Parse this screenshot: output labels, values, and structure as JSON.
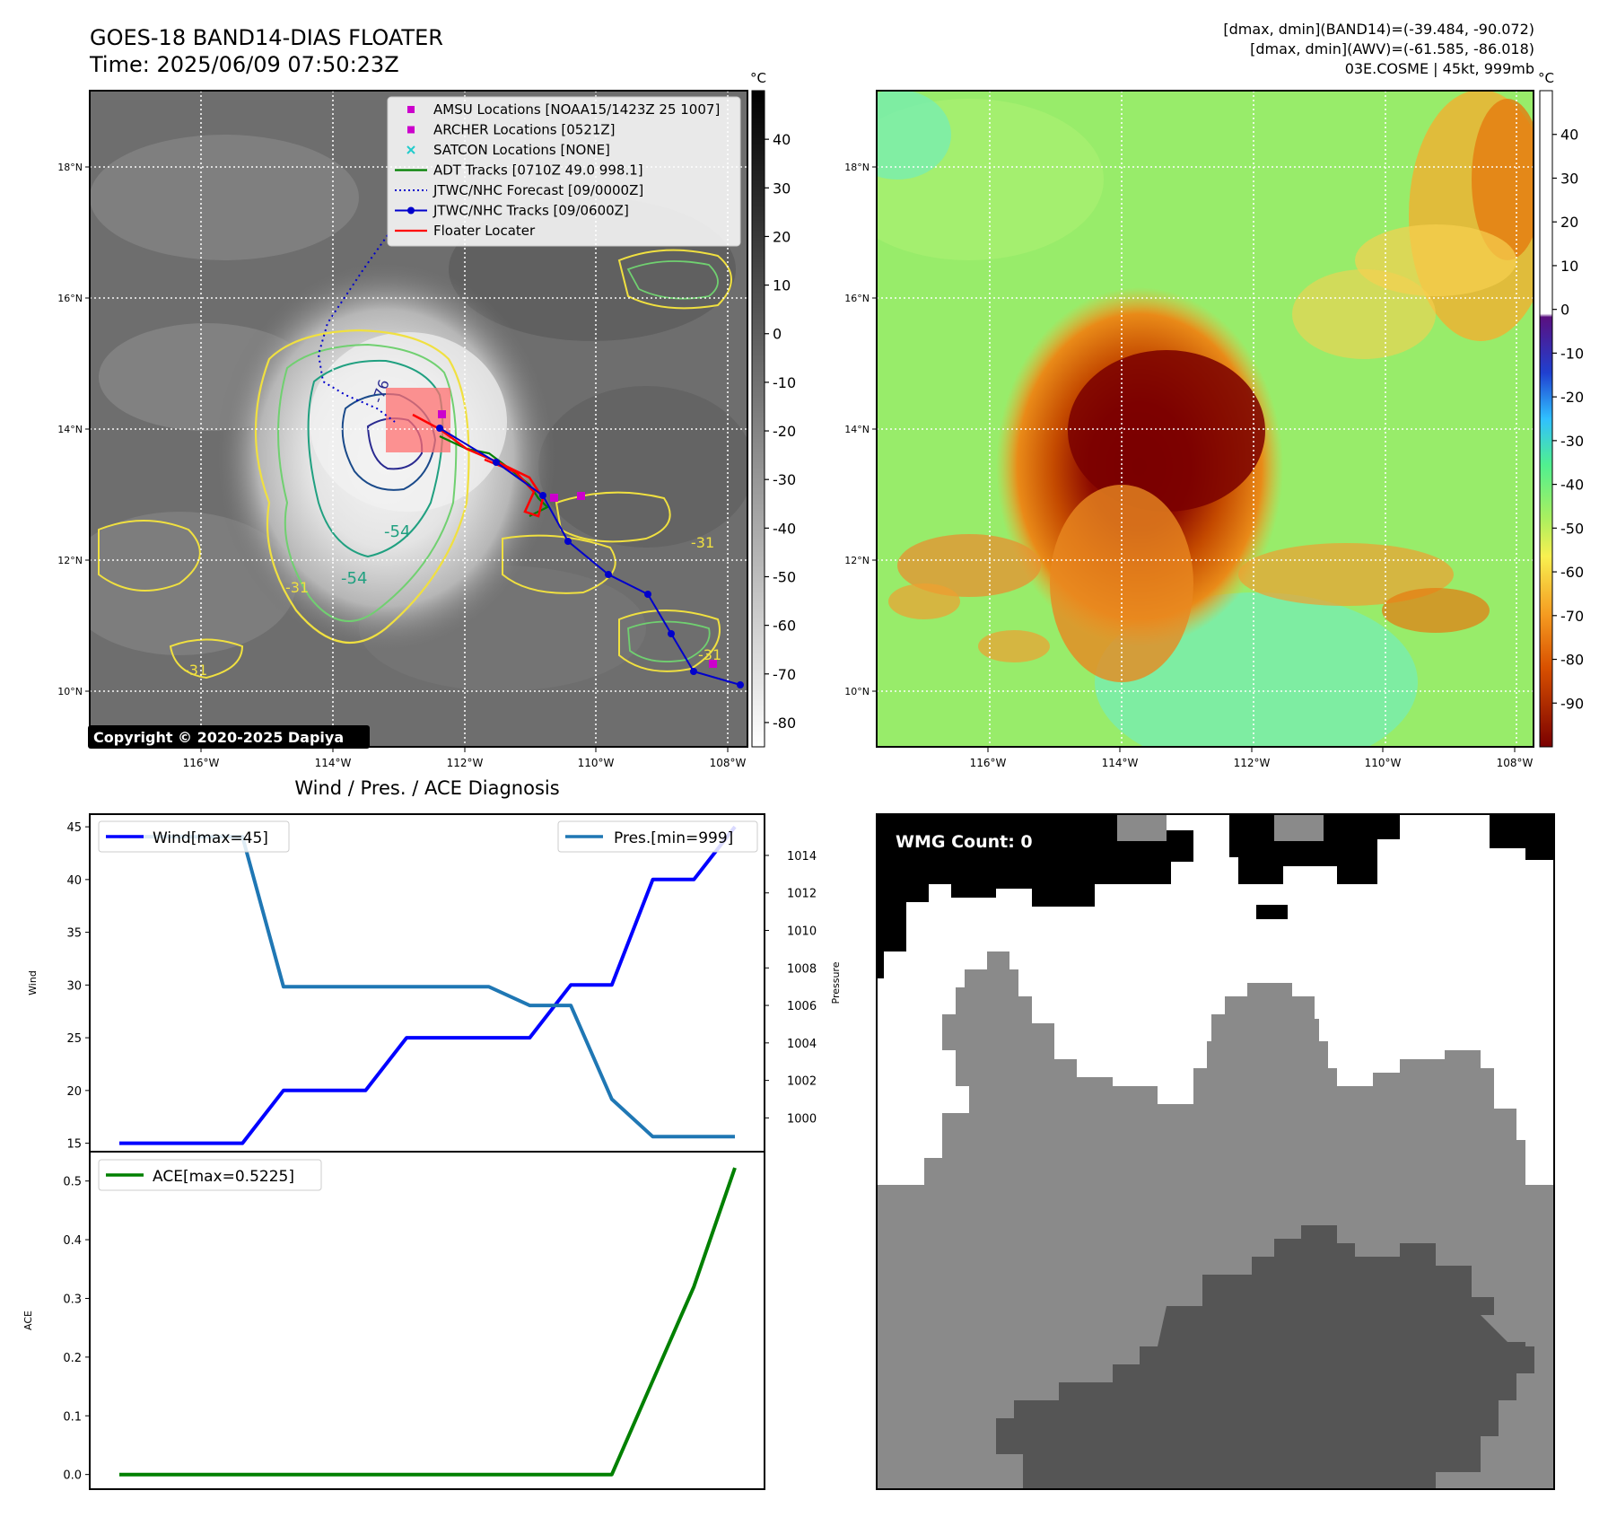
{
  "header": {
    "title_line1": "GOES-18 BAND14-DIAS FLOATER",
    "title_line2": "Time: 2025/06/09 07:50:23Z",
    "info_line1": "[dmax, dmin](BAND14)=(-39.484, -90.072)",
    "info_line2": "[dmax, dmin](AWV)=(-61.585, -86.018)",
    "info_line3": "03E.COSME | 45kt, 999mb"
  },
  "ir_panel": {
    "copyright": "Copyright © 2020-2025 Dapiya",
    "contour_labels": [
      "-76",
      "-54",
      "-54",
      "-31",
      "-31",
      "-31",
      "-31"
    ],
    "legend": [
      {
        "label": "AMSU Locations [NOAA15/1423Z 25 1007]",
        "color": "#cc00cc",
        "marker": "square"
      },
      {
        "label": "ARCHER Locations [0521Z]",
        "color": "#cc00cc",
        "marker": "square"
      },
      {
        "label": "SATCON Locations [NONE]",
        "color": "#22cccc",
        "marker": "x"
      },
      {
        "label": "ADT Tracks [0710Z 49.0 998.1]",
        "color": "#008000",
        "marker": "line"
      },
      {
        "label": "JTWC/NHC Forecast [09/0000Z]",
        "color": "#0000cc",
        "marker": "dotted"
      },
      {
        "label": "JTWC/NHC Tracks [09/0600Z]",
        "color": "#0000cc",
        "marker": "line-dot"
      },
      {
        "label": "Floater Locater",
        "color": "#ff0000",
        "marker": "line"
      }
    ],
    "colorbar_unit": "°C",
    "colorbar_ticks": [
      40,
      30,
      20,
      10,
      0,
      -10,
      -20,
      -30,
      -40,
      -50,
      -60,
      -70,
      -80
    ]
  },
  "awv_panel": {
    "colorbar_unit": "°C",
    "colorbar_ticks": [
      40,
      30,
      20,
      10,
      0,
      -10,
      -20,
      -30,
      -40,
      -50,
      -60,
      -70,
      -80,
      -90
    ]
  },
  "map_axes": {
    "lon_labels": [
      "116°W",
      "114°W",
      "112°W",
      "110°W",
      "108°W"
    ],
    "lat_labels": [
      "18°N",
      "16°N",
      "14°N",
      "12°N",
      "10°N"
    ]
  },
  "diagnosis": {
    "title": "Wind / Pres. / ACE Diagnosis",
    "wind_ylabel": "Wind",
    "pres_ylabel": "Pressure",
    "ace_ylabel": "ACE",
    "wind_legend": "Wind[max=45]",
    "pres_legend": "Pres.[min=999]",
    "ace_legend": "ACE[max=0.5225]",
    "colors": {
      "wind": "#0000ff",
      "pres": "#1f77b4",
      "ace": "#008000"
    }
  },
  "wmg_panel": {
    "label": "WMG Count: 0"
  },
  "chart_data": [
    {
      "type": "line",
      "name": "wind-pressure",
      "x": [
        0,
        1,
        2,
        3,
        4,
        5,
        6,
        7,
        8,
        9,
        10,
        11,
        12,
        13,
        14,
        15
      ],
      "series": [
        {
          "name": "Wind[max=45]",
          "axis": "left",
          "values": [
            15,
            15,
            15,
            15,
            20,
            20,
            20,
            25,
            25,
            25,
            25,
            30,
            30,
            40,
            40,
            45
          ]
        },
        {
          "name": "Pres.[min=999]",
          "axis": "right",
          "values": [
            1015,
            1015,
            1015,
            1015,
            1007,
            1007,
            1007,
            1007,
            1007,
            1007,
            1006,
            1006,
            1001,
            999,
            999,
            999
          ]
        }
      ],
      "ylim_left": [
        14.2,
        46.2
      ],
      "ylim_right": [
        998.2,
        1016.2
      ],
      "yticks_left": [
        15,
        20,
        25,
        30,
        35,
        40,
        45
      ],
      "yticks_right": [
        1000,
        1002,
        1004,
        1006,
        1008,
        1010,
        1012,
        1014
      ]
    },
    {
      "type": "line",
      "name": "ace",
      "x": [
        0,
        1,
        2,
        3,
        4,
        5,
        6,
        7,
        8,
        9,
        10,
        11,
        12,
        13,
        14,
        15
      ],
      "series": [
        {
          "name": "ACE[max=0.5225]",
          "values": [
            0,
            0,
            0,
            0,
            0,
            0,
            0,
            0,
            0,
            0,
            0,
            0,
            0,
            0.16,
            0.32,
            0.5225
          ]
        }
      ],
      "ylim": [
        -0.025,
        0.55
      ],
      "yticks": [
        0.0,
        0.1,
        0.2,
        0.3,
        0.4,
        0.5
      ]
    }
  ]
}
